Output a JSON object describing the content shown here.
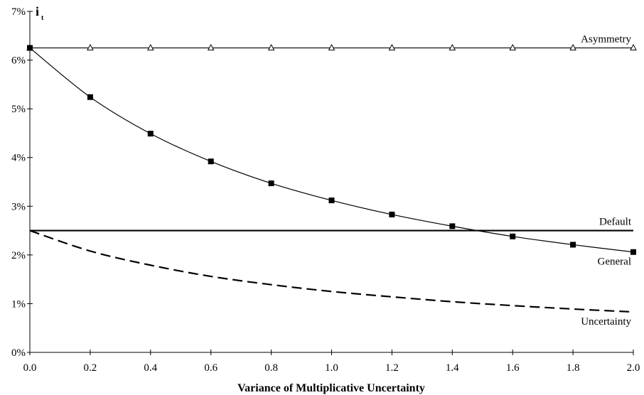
{
  "chart_data": {
    "type": "line",
    "xlabel": "Variance of Multiplicative Uncertainty",
    "ylabel": "i",
    "ylabel_subscript": "t",
    "xlim": [
      0,
      2
    ],
    "ylim": [
      0,
      7
    ],
    "x_ticks": [
      "0.0",
      "0.2",
      "0.4",
      "0.6",
      "0.8",
      "1.0",
      "1.2",
      "1.4",
      "1.6",
      "1.8",
      "2.0"
    ],
    "y_ticks": [
      "0%",
      "1%",
      "2%",
      "3%",
      "4%",
      "5%",
      "6%",
      "7%"
    ],
    "grid": false,
    "x": [
      0,
      0.2,
      0.4,
      0.6,
      0.8,
      1.0,
      1.2,
      1.4,
      1.6,
      1.8,
      2.0
    ],
    "series": [
      {
        "name": "Asymmetry",
        "style": "solid-thin",
        "marker": "open-triangle",
        "label_position": "end-above",
        "values": [
          6.25,
          6.25,
          6.25,
          6.25,
          6.25,
          6.25,
          6.25,
          6.25,
          6.25,
          6.25,
          6.25
        ]
      },
      {
        "name": "General",
        "style": "solid-thin",
        "marker": "filled-square",
        "label_position": "end-below",
        "values": [
          6.25,
          5.24,
          4.49,
          3.92,
          3.47,
          3.12,
          2.83,
          2.59,
          2.38,
          2.21,
          2.06
        ]
      },
      {
        "name": "Default",
        "style": "solid-thick",
        "marker": "none",
        "label_position": "end-above",
        "values": [
          2.5,
          2.5,
          2.5,
          2.5,
          2.5,
          2.5,
          2.5,
          2.5,
          2.5,
          2.5,
          2.5
        ]
      },
      {
        "name": "Uncertainty",
        "style": "dashed",
        "marker": "none",
        "label_position": "end-below",
        "values": [
          2.5,
          2.08,
          1.79,
          1.56,
          1.39,
          1.25,
          1.14,
          1.04,
          0.96,
          0.89,
          0.83
        ]
      }
    ]
  }
}
